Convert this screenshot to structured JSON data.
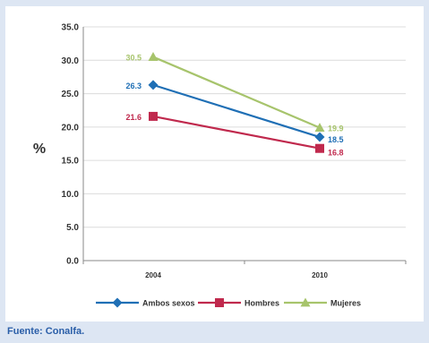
{
  "chart_data": {
    "type": "line",
    "title": "",
    "xlabel": "",
    "ylabel": "%",
    "ylim": [
      0,
      35
    ],
    "yticks": [
      "35.0",
      "30.0",
      "25.0",
      "20.0",
      "15.0",
      "10.0",
      "5.0",
      "0.0"
    ],
    "categories": [
      "2004",
      "2010"
    ],
    "series": [
      {
        "name": "Ambos sexos",
        "values": [
          26.3,
          18.5
        ],
        "labels": [
          "26.3",
          "18.5"
        ],
        "color": "#1f6fb5",
        "marker": "diamond"
      },
      {
        "name": "Hombres",
        "values": [
          21.6,
          16.8
        ],
        "labels": [
          "21.6",
          "16.8"
        ],
        "color": "#c0294d",
        "marker": "square"
      },
      {
        "name": "Mujeres",
        "values": [
          30.5,
          19.9
        ],
        "labels": [
          "30.5",
          "19.9"
        ],
        "color": "#a7c46c",
        "marker": "triangle"
      }
    ],
    "grid": true,
    "legend_position": "bottom"
  },
  "source": "Fuente: Conalfa."
}
